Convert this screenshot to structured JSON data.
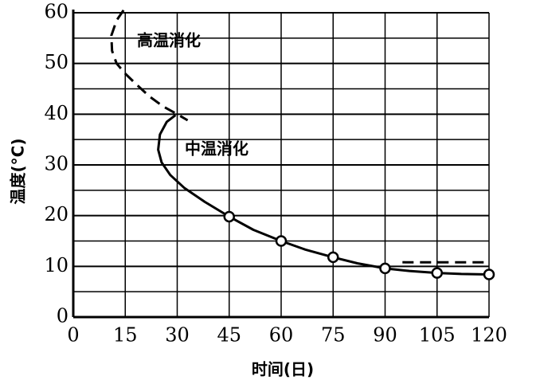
{
  "chart_data": {
    "type": "line",
    "xlabel": "时间(日)",
    "ylabel": "温度(°C)",
    "xlim": [
      0,
      120
    ],
    "ylim": [
      0,
      60
    ],
    "xticks": [
      0,
      15,
      30,
      45,
      60,
      75,
      90,
      105,
      120
    ],
    "yticks": [
      0,
      10,
      20,
      30,
      40,
      50,
      60
    ],
    "y_minor_grid": [
      5,
      15,
      25,
      35,
      45,
      55
    ],
    "grid": true,
    "series": [
      {
        "name": "高温消化",
        "color": "#000000",
        "dash": true,
        "x": [
          14.5,
          12.5,
          11,
          11.2,
          12.5,
          15,
          18,
          22,
          26,
          30,
          33
        ],
        "values": [
          60.5,
          58.5,
          55.5,
          52.5,
          50,
          48,
          46,
          43.5,
          41.5,
          40,
          38.8
        ]
      },
      {
        "name": "中温消化",
        "color": "#000000",
        "dash": false,
        "x": [
          29.5,
          27,
          25,
          24.5,
          25.5,
          28,
          32,
          38,
          45,
          52,
          60,
          67,
          75,
          82,
          90,
          97,
          105,
          112,
          120
        ],
        "values": [
          39.8,
          38.5,
          36,
          33,
          30.5,
          28,
          25.5,
          22.7,
          19.8,
          17.2,
          15,
          13.3,
          11.8,
          10.6,
          9.6,
          9.1,
          8.7,
          8.5,
          8.4
        ]
      },
      {
        "color": "#000000",
        "marker": "circle",
        "x": [
          45,
          60,
          75,
          90,
          105,
          120
        ],
        "values": [
          19.8,
          15,
          11.8,
          9.6,
          8.7,
          8.4
        ]
      },
      {
        "color": "#000000",
        "dash": true,
        "x": [
          95,
          120
        ],
        "values": [
          10.8,
          10.8
        ]
      }
    ]
  }
}
